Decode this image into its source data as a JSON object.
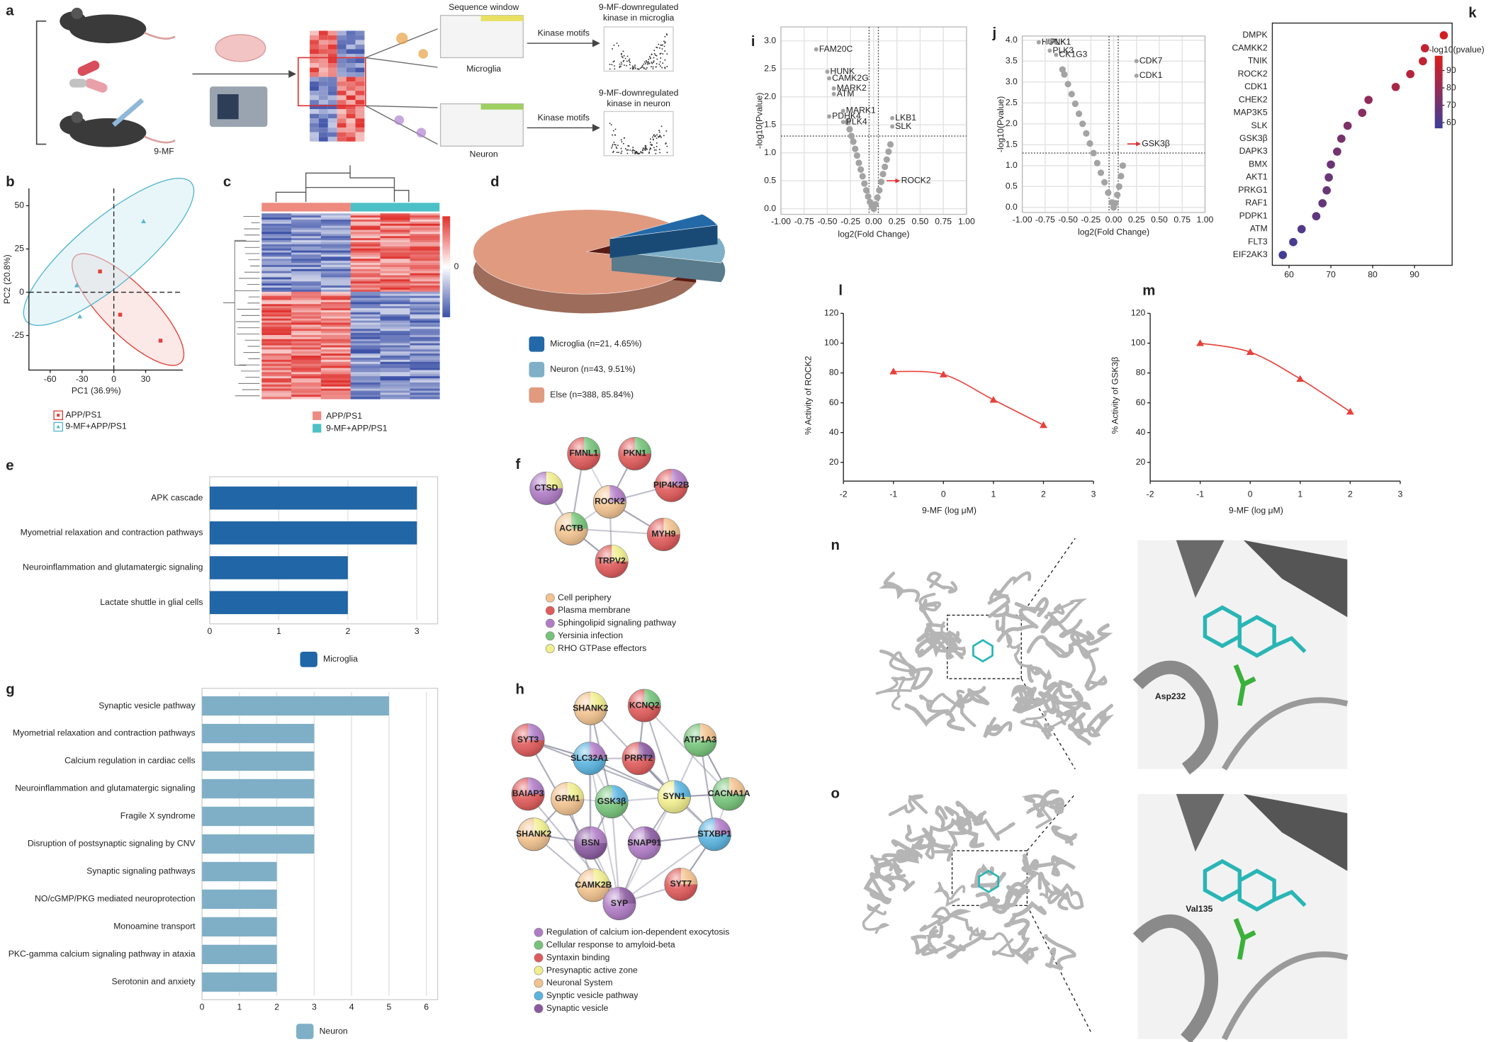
{
  "schematic": {
    "panel": "a",
    "drug": "9-MF",
    "sequence_window": "Sequence window",
    "microglia": "Microglia",
    "neuron": "Neuron",
    "kinase_motifs": [
      "Kinase motifs",
      "Kinase motifs"
    ],
    "kinase_microglia": [
      "9-MF-downregulated",
      "kinase in microglia"
    ],
    "kinase_neuron": [
      "9-MF-downregulated",
      "kinase in neuron"
    ]
  },
  "heatmap": {
    "panel": "c",
    "groups": [
      {
        "name": "APP/PS1",
        "color": "#ee8a80"
      },
      {
        "name": "9-MF+APP/PS1",
        "color": "#4cc0c6"
      }
    ],
    "color_scale_ticks": [
      0
    ],
    "colors": [
      "#3a4fa6",
      "#ffffff",
      "#e0302c"
    ]
  },
  "networks": [
    {
      "panel": "f",
      "nodes": [
        "FMNL1",
        "PKN1",
        "CTSD",
        "ROCK2",
        "PIP4K2B",
        "ACTB",
        "MYH9",
        "TRPV2"
      ],
      "legend": [
        {
          "name": "Cell periphery",
          "color": "#f2c38f"
        },
        {
          "name": "Plasma membrane",
          "color": "#e05a5a"
        },
        {
          "name": "Sphingolipid signaling pathway",
          "color": "#b07cc6"
        },
        {
          "name": "Yersinia infection",
          "color": "#76c47a"
        },
        {
          "name": "RHO GTPase effectors",
          "color": "#f1ee8e"
        }
      ]
    },
    {
      "panel": "h",
      "nodes": [
        "SHANK2",
        "KCNQ2",
        "SYT3",
        "SLC32A1",
        "PRRT2",
        "ATP1A3",
        "BAIAP3",
        "GRM1",
        "GSK3β",
        "SYN1",
        "CACNA1A",
        "SHANK2",
        "BSN",
        "SNAP91",
        "STXBP1",
        "CAMK2B",
        "SYP",
        "SYT7"
      ],
      "legend": [
        {
          "name": "Regulation of calcium ion-dependent exocytosis",
          "color": "#b07cc6"
        },
        {
          "name": "Cellular response to amyloid-beta",
          "color": "#76c47a"
        },
        {
          "name": "Syntaxin binding",
          "color": "#e05a5a"
        },
        {
          "name": "Presynaptic active zone",
          "color": "#f1ee8e"
        },
        {
          "name": "Neuronal System",
          "color": "#f2c38f"
        },
        {
          "name": "Synptic vesicle pathway",
          "color": "#5ab4e0"
        },
        {
          "name": "Synaptic vesicle",
          "color": "#8a5aa0"
        }
      ]
    }
  ],
  "docking": [
    {
      "panel": "n",
      "residue": "Asp232"
    },
    {
      "panel": "o",
      "residue": "Val135"
    }
  ],
  "chart_data": [
    {
      "type": "scatter",
      "panel": "b",
      "xlabel": "PC1 (36.9%)",
      "ylabel": "PC2 (20.8%)",
      "xlim": [
        -80,
        65
      ],
      "ylim": [
        -45,
        60
      ],
      "xticks": [
        -60,
        -30,
        0,
        30
      ],
      "yticks": [
        -25,
        0,
        25,
        50
      ],
      "series": [
        {
          "name": "APP/PS1",
          "color": "#e0413a",
          "x": [
            -13,
            6,
            44
          ],
          "values": [
            12,
            -13,
            -28
          ]
        },
        {
          "name": "9-MF+APP/PS1",
          "color": "#55b6cf",
          "x": [
            -35,
            -32,
            28
          ],
          "values": [
            4,
            -14,
            41
          ]
        }
      ]
    },
    {
      "type": "pie",
      "panel": "d",
      "categories": [
        "Microglia (n=21, 4.65%)",
        "Neuron (n=43, 9.51%)",
        "Else (n=388, 85.84%)"
      ],
      "values": [
        4.65,
        9.51,
        85.84
      ],
      "colors": [
        "#2369a8",
        "#7fb0c8",
        "#e09a80"
      ]
    },
    {
      "type": "barh",
      "panel": "e",
      "legend": "Microglia",
      "color": "#2166a6",
      "categories": [
        "APK cascade",
        "Myometrial relaxation and contraction pathways",
        "Neuroinflammation and glutamatergic signaling",
        "Lactate shuttle in glial cells"
      ],
      "values": [
        3,
        3,
        2,
        2
      ],
      "xlim": [
        0,
        3.3
      ],
      "xticks": [
        0,
        1,
        2,
        3
      ],
      "grid": true
    },
    {
      "type": "barh",
      "panel": "g",
      "legend": "Neuron",
      "color": "#7fafc6",
      "categories": [
        "Synaptic vesicle pathway",
        "Myometrial relaxation and contraction pathways",
        "Calcium regulation in cardiac cells",
        "Neuroinflammation and glutamatergic signaling",
        "Fragile X syndrome",
        "Disruption of postsynaptic signaling by CNV",
        "Synaptic signaling pathways",
        "NO/cGMP/PKG mediated neuroprotection",
        "Monoamine transport",
        "PKC-gamma calcium signaling pathway in ataxia",
        "Serotonin and anxiety"
      ],
      "values": [
        5,
        3,
        3,
        3,
        3,
        3,
        2,
        2,
        2,
        2,
        2
      ],
      "xlim": [
        0,
        6.3
      ],
      "xticks": [
        0,
        1,
        2,
        3,
        4,
        5,
        6
      ],
      "grid": true
    },
    {
      "type": "volcano",
      "panel": "i",
      "xlabel": "log2(Fold Change)",
      "ylabel": "-log10(Pvalue)",
      "xlim": [
        -1,
        1
      ],
      "ylim": [
        -0.1,
        3.25
      ],
      "xticks": [
        {
          "value": -1,
          "label": "-1.00"
        },
        {
          "value": -0.75,
          "label": "-0.75"
        },
        {
          "value": -0.5,
          "label": "-0.50"
        },
        {
          "value": -0.25,
          "label": "-0.25"
        },
        {
          "value": 0,
          "label": "0.00"
        },
        0.25,
        {
          "value": 0.5,
          "label": "0.50"
        },
        0.75,
        {
          "value": 1,
          "label": "1.00"
        }
      ],
      "yticks": [
        {
          "value": 0,
          "label": "0.0"
        },
        0.5,
        {
          "value": 1,
          "label": "1.0"
        },
        1.5,
        {
          "value": 2,
          "label": "2.0"
        },
        2.5,
        {
          "value": 3,
          "label": "3.0"
        }
      ],
      "grid": true,
      "hlines": [
        1.3
      ],
      "vlines": [
        -0.05,
        0.05
      ],
      "color": "#a3a3a3",
      "x": [
        0,
        -0.02,
        -0.04,
        -0.06,
        -0.08,
        -0.1,
        -0.12,
        -0.14,
        -0.16,
        -0.18,
        -0.2,
        -0.22,
        -0.24,
        -0.26,
        -0.28,
        0.02,
        0.04,
        0.06,
        0.08,
        0.1,
        0.12,
        0.14,
        0.16,
        0.18
      ],
      "values": [
        0,
        0.05,
        0.12,
        0.22,
        0.33,
        0.45,
        0.58,
        0.7,
        0.82,
        0.95,
        1.07,
        1.2,
        1.3,
        1.42,
        1.55,
        0.08,
        0.2,
        0.33,
        0.48,
        0.62,
        0.75,
        0.88,
        1.02,
        1.15
      ],
      "labeled_points": {
        "labels": [
          "FAM20C",
          "HUNK",
          "CAMK2G",
          "MARK2",
          "ATM",
          "MARK1",
          "PDHK4",
          "PLK4",
          "LKB1",
          "SLK"
        ],
        "x": [
          -0.62,
          -0.5,
          -0.48,
          -0.43,
          -0.43,
          -0.33,
          -0.48,
          -0.33,
          0.2,
          0.2
        ],
        "values": [
          2.85,
          2.45,
          2.33,
          2.15,
          2.05,
          1.75,
          1.65,
          1.55,
          1.62,
          1.47
        ],
        "color": "#e03030"
      },
      "annotation": {
        "text": "ROCK2",
        "x": 0.14,
        "y": 0.5,
        "color": "#e03030"
      }
    },
    {
      "type": "volcano",
      "panel": "j",
      "xlabel": "log2(Fold Change)",
      "ylabel": "-log10(Pvalue)",
      "xlim": [
        -1,
        1
      ],
      "ylim": [
        -0.12,
        4.1
      ],
      "xticks": [
        {
          "value": -1,
          "label": "-1.00"
        },
        {
          "value": -0.75,
          "label": "-0.75"
        },
        {
          "value": -0.5,
          "label": "-0.50"
        },
        {
          "value": -0.25,
          "label": "-0.25"
        },
        {
          "value": 0,
          "label": "0.00"
        },
        0.25,
        {
          "value": 0.5,
          "label": "0.50"
        },
        0.75,
        {
          "value": 1,
          "label": "1.00"
        }
      ],
      "yticks": [
        {
          "value": 0,
          "label": "0.0"
        },
        0.5,
        {
          "value": 1,
          "label": "1.0"
        },
        1.5,
        {
          "value": 2,
          "label": "2.0"
        },
        2.5,
        {
          "value": 3,
          "label": "3.0"
        },
        3.5,
        {
          "value": 4,
          "label": "4.0"
        }
      ],
      "grid": true,
      "hlines": [
        1.3
      ],
      "vlines": [
        -0.05,
        0.05
      ],
      "color": "#a3a3a3",
      "x": [
        0,
        -0.02,
        -0.06,
        -0.1,
        -0.14,
        -0.18,
        -0.22,
        -0.26,
        -0.3,
        -0.34,
        -0.38,
        -0.42,
        -0.46,
        -0.5,
        -0.54,
        -0.56,
        0.02,
        0.04,
        0.06,
        0.08,
        0.1
      ],
      "values": [
        0,
        0.12,
        0.35,
        0.6,
        0.83,
        1.06,
        1.3,
        1.53,
        1.77,
        2,
        2.24,
        2.48,
        2.71,
        2.95,
        3.18,
        3.3,
        0.1,
        0.3,
        0.5,
        0.75,
        1
      ],
      "labeled_points": {
        "labels": [
          "HUNK",
          "PLK1",
          "PLK3",
          "CK1G3",
          "CDK7",
          "CDK1"
        ],
        "x": [
          -0.82,
          -0.73,
          -0.7,
          -0.63,
          0.25,
          0.25
        ],
        "values": [
          3.95,
          3.95,
          3.75,
          3.65,
          3.5,
          3.15
        ],
        "color": "#e03030"
      },
      "annotation": {
        "text": "GSK3β",
        "x": 0.15,
        "y": 1.52,
        "color": "#e03030"
      }
    },
    {
      "type": "dot",
      "panel": "k",
      "categories": [
        "DMPK",
        "CAMKK2",
        "TNIK",
        "ROCK2",
        "CDK1",
        "CHEK2",
        "MAP3K5",
        "SLK",
        "GSK3β",
        "DAPK3",
        "BMX",
        "AKT1",
        "PRKG1",
        "RAF1",
        "PDPK1",
        "ATM",
        "FLT3",
        "EIF2AK3"
      ],
      "values": [
        97,
        92.5,
        92,
        89,
        85.5,
        79,
        77.5,
        74,
        72.5,
        71.5,
        70,
        69.5,
        69,
        68,
        66.5,
        63,
        61,
        58.5
      ],
      "xlim": [
        56,
        99
      ],
      "xticks": [
        60,
        70,
        80,
        90
      ],
      "colorbar_label": "-log10(pvalue)",
      "color_lim": [
        57,
        98.5
      ],
      "color_ticks": [
        60,
        70,
        80,
        90
      ],
      "colors": [
        "#3a3f9a",
        "#8a2e5e",
        "#d81e1e"
      ]
    },
    {
      "type": "line",
      "panel": "l",
      "xlabel": "9-MF (log μM)",
      "ylabel": "% Activity of ROCK2",
      "xlim": [
        -2,
        3
      ],
      "ylim": [
        10,
        120
      ],
      "xticks": [
        -2,
        -1,
        0,
        1,
        2,
        3
      ],
      "yticks": [
        20,
        40,
        60,
        80,
        100,
        120
      ],
      "color": "#e8403a",
      "x": [
        -1,
        0,
        1,
        2
      ],
      "values": [
        81,
        79,
        62,
        45
      ]
    },
    {
      "type": "line",
      "panel": "m",
      "xlabel": "9-MF (log μM)",
      "ylabel": "% Activity of GSK3β",
      "xlim": [
        -2,
        3
      ],
      "ylim": [
        10,
        120
      ],
      "xticks": [
        -2,
        -1,
        0,
        1,
        2,
        3
      ],
      "yticks": [
        20,
        40,
        60,
        80,
        100,
        120
      ],
      "color": "#e8403a",
      "x": [
        -1,
        0,
        1,
        2
      ],
      "values": [
        100,
        94,
        76,
        54
      ]
    }
  ]
}
